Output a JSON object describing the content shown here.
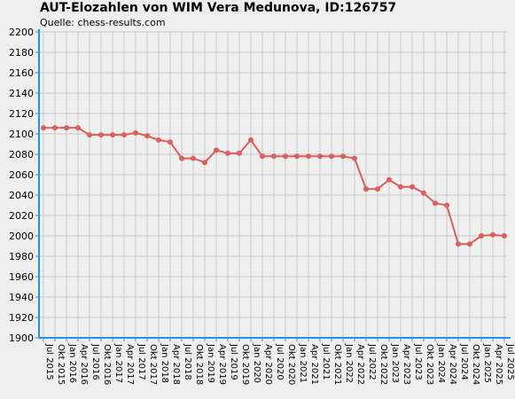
{
  "colors": {
    "background": "#efefef",
    "grid": "#c8c8c8",
    "axis": "#1e90ff",
    "line": "#d9605d"
  },
  "chart_data": {
    "type": "line",
    "title": "AUT-Elozahlen von WIM Vera Medunova, ID:126757",
    "subtitle": "Quelle: chess-results.com",
    "xlabel": "",
    "ylabel": "",
    "ylim": [
      1900,
      2200
    ],
    "ytick_step": 20,
    "grid": true,
    "categories": [
      "Jul 2015",
      "Okt 2015",
      "Jan 2016",
      "Apr 2016",
      "Jul 2016",
      "Okt 2016",
      "Jan 2017",
      "Apr 2017",
      "Jul 2017",
      "Okt 2017",
      "Jan 2018",
      "Apr 2018",
      "Jul 2018",
      "Okt 2018",
      "Jan 2019",
      "Apr 2019",
      "Jul 2019",
      "Okt 2019",
      "Jan 2020",
      "Apr 2020",
      "Jul 2020",
      "Okt 2020",
      "Jan 2021",
      "Apr 2021",
      "Jul 2021",
      "Okt 2021",
      "Jan 2022",
      "Apr 2022",
      "Jul 2022",
      "Okt 2022",
      "Jan 2023",
      "Apr 2023",
      "Jul 2023",
      "Okt 2023",
      "Jan 2024",
      "Apr 2024",
      "Jul 2024",
      "Okt 2024",
      "Jan 2025",
      "Apr 2025",
      "Jul 2025"
    ],
    "series": [
      {
        "values": [
          2106,
          2106,
          2106,
          2106,
          2099,
          2099,
          2099,
          2099,
          2101,
          2098,
          2094,
          2092,
          2076,
          2076,
          2072,
          2084,
          2081,
          2081,
          2094,
          2078,
          2078,
          2078,
          2078,
          2078,
          2078,
          2078,
          2078,
          2076,
          2046,
          2046,
          2055,
          2048,
          2048,
          2042,
          2032,
          2030,
          1992,
          1992,
          2000,
          2001,
          2000
        ]
      }
    ]
  }
}
